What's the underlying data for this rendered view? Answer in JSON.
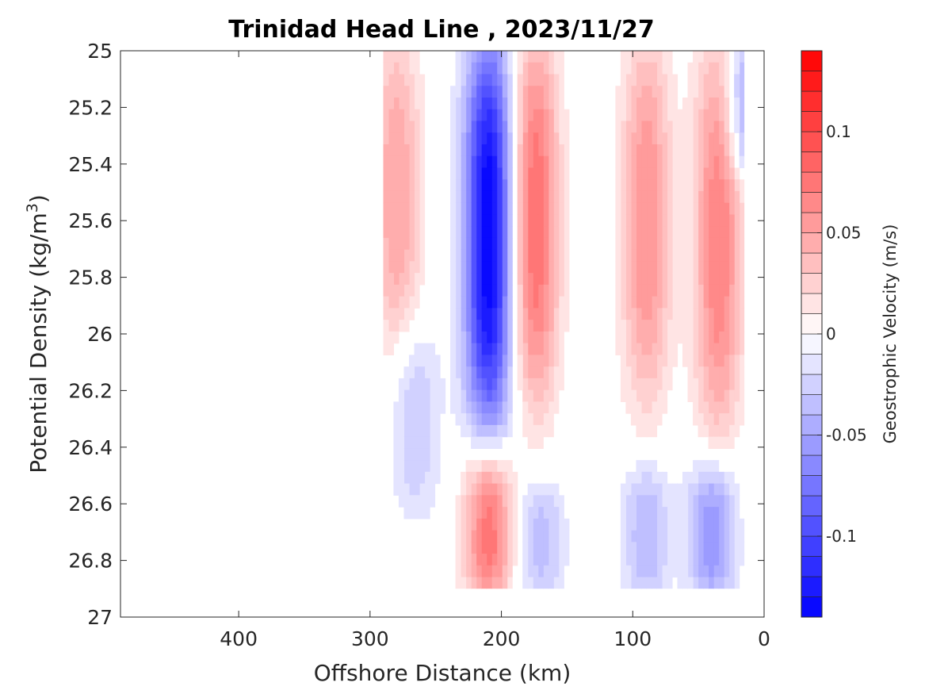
{
  "chart_data": {
    "type": "heatmap",
    "subtype": "filled-contour",
    "title": "Trinidad Head Line , 2023/11/27",
    "xlabel": "Offshore Distance (km)",
    "ylabel": "Potential Density (kg/m",
    "ylabel_sup": "3",
    "ylabel_end": ")",
    "x_reversed": true,
    "y_reversed": true,
    "xlim": [
      0,
      490
    ],
    "ylim": [
      25,
      27
    ],
    "x_ticks": [
      400,
      300,
      200,
      100,
      0
    ],
    "x_tick_labels": [
      "400",
      "300",
      "200",
      "100",
      "0"
    ],
    "y_ticks": [
      25,
      25.2,
      25.4,
      25.6,
      25.8,
      26,
      26.2,
      26.4,
      26.6,
      26.8,
      27
    ],
    "y_tick_labels": [
      "25",
      "25.2",
      "25.4",
      "25.6",
      "25.8",
      "26",
      "26.2",
      "26.4",
      "26.6",
      "26.8",
      "27"
    ],
    "colorbar": {
      "label": "Geostrophic Velocity (m/s)",
      "range": [
        -0.14,
        0.14
      ],
      "levels": 28,
      "ticks": [
        0.1,
        0.05,
        0,
        -0.05,
        -0.1
      ],
      "tick_labels": [
        "0.1",
        "0.05",
        "0",
        "-0.05",
        "-0.1"
      ],
      "positive_color": "#ff0000",
      "negative_color": "#0000ff",
      "zero_color": "#ffffff"
    },
    "data_extent": {
      "x_min": 15,
      "x_max": 290,
      "y_max": 26.9
    },
    "features": [
      {
        "sign": "positive",
        "x_center": 280,
        "y_top": 25.0,
        "y_bottom": 26.0,
        "peak": 0.05
      },
      {
        "sign": "negative",
        "x_center": 210,
        "y_top": 25.0,
        "y_bottom": 26.3,
        "peak": -0.14
      },
      {
        "sign": "negative",
        "x_center": 265,
        "y_top": 26.0,
        "y_bottom": 26.6,
        "peak": -0.03
      },
      {
        "sign": "positive",
        "x_center": 175,
        "y_top": 25.0,
        "y_bottom": 26.2,
        "peak": 0.08
      },
      {
        "sign": "positive",
        "x_center": 90,
        "y_top": 25.0,
        "y_bottom": 26.2,
        "peak": 0.06
      },
      {
        "sign": "positive",
        "x_center": 35,
        "y_top": 25.0,
        "y_bottom": 26.3,
        "peak": 0.07
      },
      {
        "sign": "negative",
        "x_center": 12,
        "y_top": 25.0,
        "y_bottom": 25.4,
        "peak": -0.06
      },
      {
        "sign": "positive",
        "x_center": 210,
        "y_top": 26.45,
        "y_bottom": 26.9,
        "peak": 0.08
      },
      {
        "sign": "negative",
        "x_center": 170,
        "y_top": 26.55,
        "y_bottom": 26.9,
        "peak": -0.035
      },
      {
        "sign": "negative",
        "x_center": 90,
        "y_top": 26.5,
        "y_bottom": 26.9,
        "peak": -0.04
      },
      {
        "sign": "negative",
        "x_center": 40,
        "y_top": 26.5,
        "y_bottom": 26.9,
        "peak": -0.06
      }
    ]
  }
}
